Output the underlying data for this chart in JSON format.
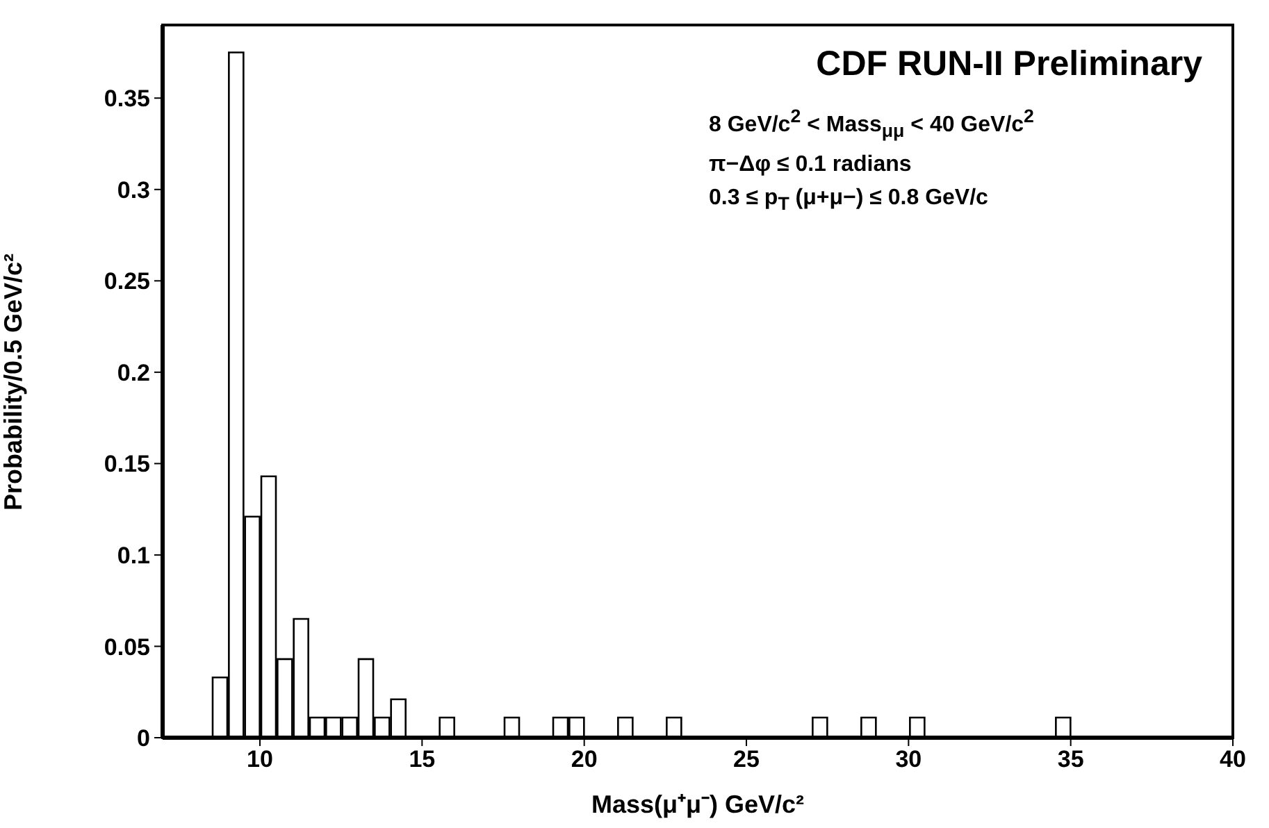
{
  "chart_data": {
    "type": "histogram",
    "title": "CDF RUN-II Preliminary",
    "annotations": [
      "8 GeV/c$^{2}$ < Mass$_{μμ}$ < 40 GeV/c$^{2}$",
      "π−Δφ  ≤ 0.1 radians",
      "0.3 ≤ p$_{T}$ (μ+μ−) ≤ 0.8 GeV/c"
    ],
    "xlabel": "Mass(μ⁺μ⁻) GeV/c²",
    "ylabel": "Probability/0.5 GeV/c²",
    "bins": [
      8.5,
      9,
      9.5,
      10,
      10.5,
      11,
      11.5,
      12,
      12.5,
      13,
      13.5,
      14,
      14.5,
      15,
      15.5,
      16,
      16.5,
      17,
      17.5,
      18,
      18.5,
      19,
      19.5,
      20,
      20.5,
      21,
      21.5,
      22,
      22.5,
      23,
      23.5,
      24,
      24.5,
      25,
      25.5,
      26,
      26.5,
      27,
      27.5,
      28,
      28.5,
      29,
      29.5,
      30,
      30.5,
      31,
      31.5,
      32,
      32.5,
      33,
      33.5,
      34,
      34.5,
      35
    ],
    "values": [
      0.033,
      0.375,
      0.121,
      0.143,
      0.043,
      0.065,
      0.011,
      0.011,
      0.011,
      0.043,
      0.011,
      0.021,
      0,
      0,
      0.011,
      0,
      0,
      0,
      0.011,
      0,
      0,
      0.011,
      0.011,
      0,
      0,
      0.011,
      0,
      0,
      0.011,
      0,
      0,
      0,
      0,
      0,
      0,
      0,
      0,
      0.011,
      0,
      0,
      0.011,
      0,
      0,
      0.011,
      0,
      0,
      0,
      0,
      0,
      0,
      0,
      0,
      0.011
    ],
    "color": "#000000",
    "xlim": [
      7,
      40
    ],
    "xticks": [
      10,
      15,
      20,
      25,
      30,
      35,
      40
    ],
    "ylim": [
      0,
      0.39
    ],
    "yticks": [
      0,
      0.05,
      0.1,
      0.15,
      0.2,
      0.25,
      0.3,
      0.35
    ],
    "grid": false,
    "legend": false
  }
}
